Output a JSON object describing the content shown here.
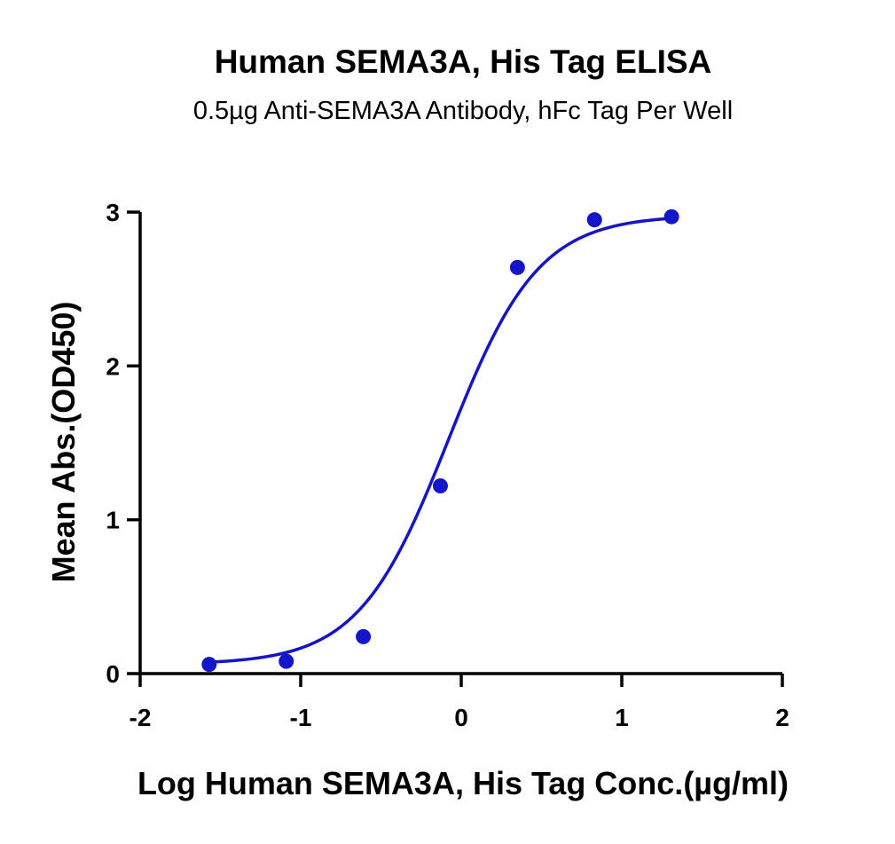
{
  "chart_data": {
    "type": "scatter",
    "title": "Human SEMA3A, His Tag ELISA",
    "subtitle": "0.5µg Anti-SEMA3A Antibody, hFc Tag Per Well",
    "xlabel": "Log Human SEMA3A, His Tag Conc.(µg/ml)",
    "ylabel": "Mean Abs.(OD450)",
    "xlim": [
      -2,
      2
    ],
    "ylim": [
      0,
      3
    ],
    "x_ticks": [
      -2,
      -1,
      0,
      1,
      2
    ],
    "y_ticks": [
      0,
      1,
      2,
      3
    ],
    "x_tick_labels": [
      "-2",
      "-1",
      "0",
      "1",
      "2"
    ],
    "y_tick_labels": [
      "0",
      "1",
      "2",
      "3"
    ],
    "grid": false,
    "series": [
      {
        "x": [
          -1.57,
          -1.09,
          -0.61,
          -0.13,
          0.35,
          0.83,
          1.31
        ],
        "y": [
          0.06,
          0.08,
          0.24,
          1.22,
          2.64,
          2.95,
          2.97
        ],
        "color": "#1414c8",
        "fit": "4PL sigmoidal curve"
      }
    ]
  }
}
